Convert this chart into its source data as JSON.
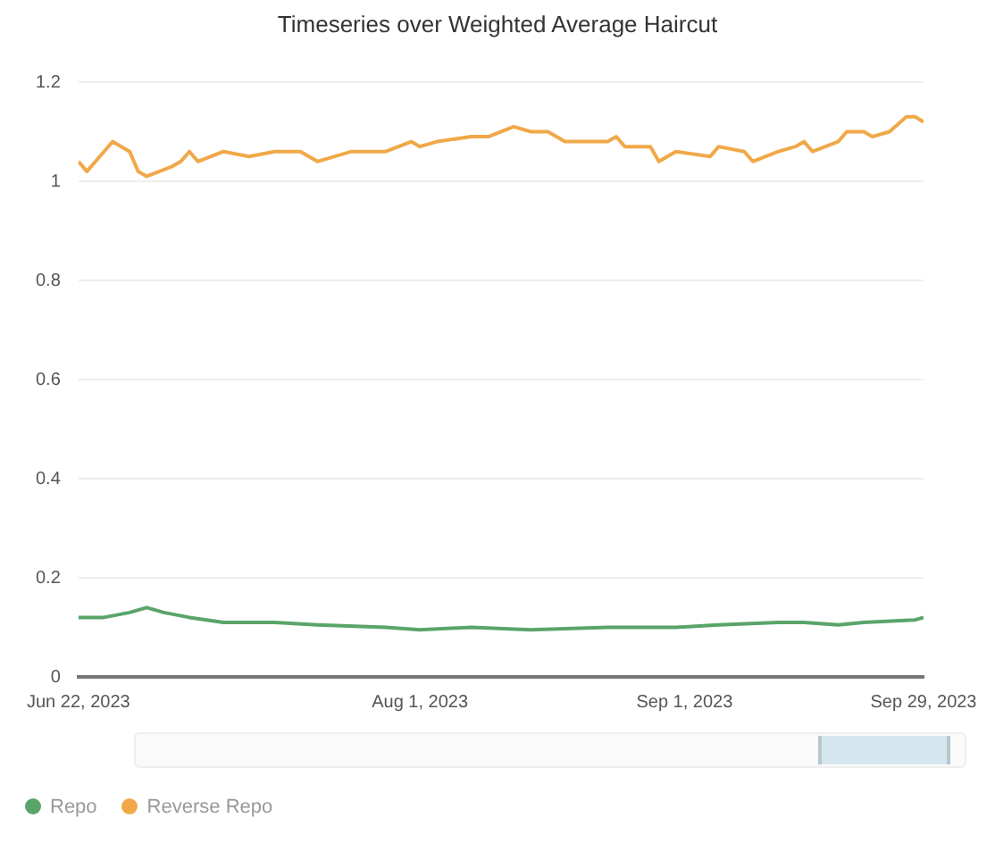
{
  "chart_data": {
    "type": "line",
    "title": "Timeseries over Weighted Average Haircut",
    "xlim": [
      "2023-06-22",
      "2023-09-29"
    ],
    "xticks": [
      {
        "value": "2023-06-22",
        "label": "Jun 22, 2023"
      },
      {
        "value": "2023-08-01",
        "label": "Aug 1, 2023"
      },
      {
        "value": "2023-09-01",
        "label": "Sep 1, 2023"
      },
      {
        "value": "2023-09-29",
        "label": "Sep 29, 2023"
      }
    ],
    "ylim": [
      0,
      1.2
    ],
    "yticks": [
      0,
      0.2,
      0.4,
      0.6,
      0.8,
      1,
      1.2
    ],
    "grid": "y",
    "legend": "bottom left",
    "marker": "none",
    "line_style": "solid",
    "series": [
      {
        "name": "Repo",
        "color": "#5aa469",
        "x": [
          "2023-06-22",
          "2023-06-25",
          "2023-06-28",
          "2023-06-30",
          "2023-07-02",
          "2023-07-05",
          "2023-07-09",
          "2023-07-15",
          "2023-07-20",
          "2023-07-28",
          "2023-08-01",
          "2023-08-07",
          "2023-08-14",
          "2023-08-23",
          "2023-08-31",
          "2023-09-05",
          "2023-09-12",
          "2023-09-15",
          "2023-09-19",
          "2023-09-22",
          "2023-09-28",
          "2023-09-29"
        ],
        "values": [
          0.12,
          0.12,
          0.13,
          0.14,
          0.13,
          0.12,
          0.11,
          0.11,
          0.105,
          0.1,
          0.095,
          0.1,
          0.095,
          0.1,
          0.1,
          0.105,
          0.11,
          0.11,
          0.105,
          0.11,
          0.115,
          0.12
        ]
      },
      {
        "name": "Reverse Repo",
        "color": "#f0a848",
        "x": [
          "2023-06-22",
          "2023-06-23",
          "2023-06-25",
          "2023-06-26",
          "2023-06-28",
          "2023-06-29",
          "2023-06-30",
          "2023-07-03",
          "2023-07-04",
          "2023-07-05",
          "2023-07-06",
          "2023-07-09",
          "2023-07-12",
          "2023-07-15",
          "2023-07-18",
          "2023-07-20",
          "2023-07-24",
          "2023-07-28",
          "2023-07-31",
          "2023-08-01",
          "2023-08-03",
          "2023-08-07",
          "2023-08-09",
          "2023-08-12",
          "2023-08-14",
          "2023-08-16",
          "2023-08-18",
          "2023-08-23",
          "2023-08-24",
          "2023-08-25",
          "2023-08-28",
          "2023-08-29",
          "2023-08-31",
          "2023-09-04",
          "2023-09-05",
          "2023-09-08",
          "2023-09-09",
          "2023-09-12",
          "2023-09-14",
          "2023-09-15",
          "2023-09-16",
          "2023-09-19",
          "2023-09-20",
          "2023-09-22",
          "2023-09-23",
          "2023-09-25",
          "2023-09-27",
          "2023-09-28",
          "2023-09-29"
        ],
        "values": [
          1.04,
          1.02,
          1.06,
          1.08,
          1.06,
          1.02,
          1.01,
          1.03,
          1.04,
          1.06,
          1.04,
          1.06,
          1.05,
          1.06,
          1.06,
          1.04,
          1.06,
          1.06,
          1.08,
          1.07,
          1.08,
          1.09,
          1.09,
          1.11,
          1.1,
          1.1,
          1.08,
          1.08,
          1.09,
          1.07,
          1.07,
          1.04,
          1.06,
          1.05,
          1.07,
          1.06,
          1.04,
          1.06,
          1.07,
          1.08,
          1.06,
          1.08,
          1.1,
          1.1,
          1.09,
          1.1,
          1.13,
          1.13,
          1.12
        ]
      }
    ]
  }
}
